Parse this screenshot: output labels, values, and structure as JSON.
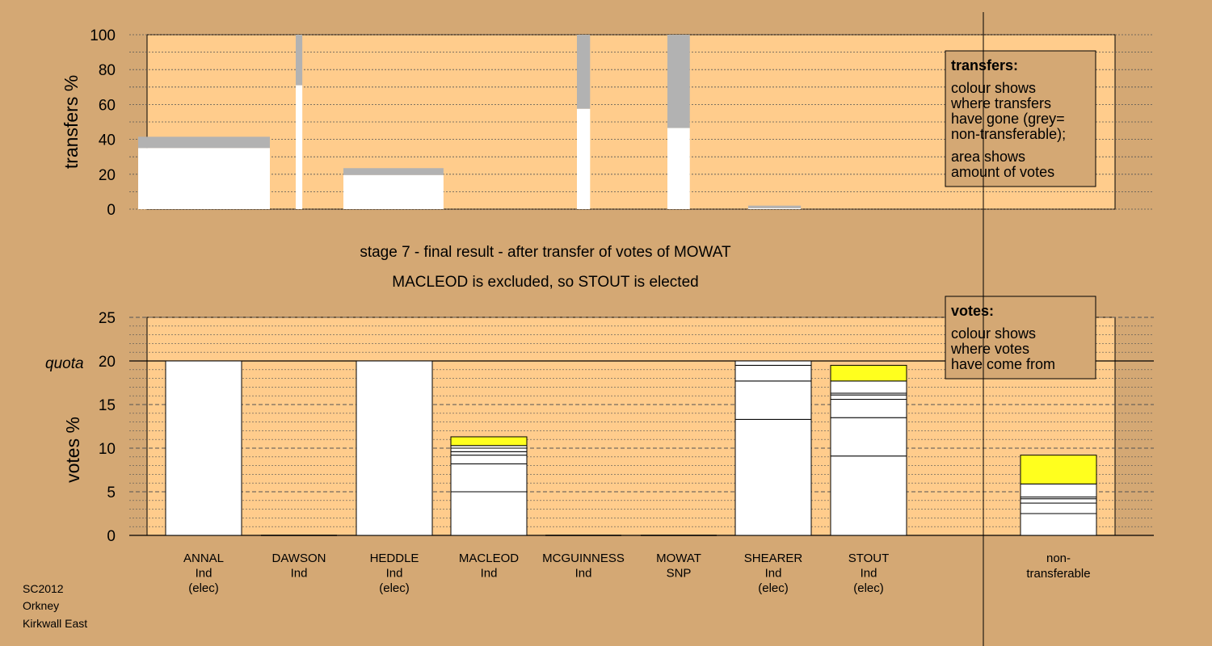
{
  "colors": {
    "background": "#d4a874",
    "plot_area": "#ffcc8c",
    "bar": "#ffffff",
    "non_transferable": "#b2b2b2",
    "highlight": "#ffff1e",
    "legend_box": "#d4a874"
  },
  "footer": {
    "line1": "SC2012",
    "line2": "Orkney",
    "line3": "Kirkwall East"
  },
  "stage_title": {
    "line1": "stage 7 - final result - after transfer of votes of MOWAT",
    "line2": "MACLEOD is excluded, so STOUT is elected"
  },
  "candidates": [
    {
      "name": "ANNAL",
      "party": "Ind",
      "status": "(elec)"
    },
    {
      "name": "DAWSON",
      "party": "Ind",
      "status": ""
    },
    {
      "name": "HEDDLE",
      "party": "Ind",
      "status": "(elec)"
    },
    {
      "name": "MACLEOD",
      "party": "Ind",
      "status": ""
    },
    {
      "name": "MCGUINNESS",
      "party": "Ind",
      "status": ""
    },
    {
      "name": "MOWAT",
      "party": "SNP",
      "status": ""
    },
    {
      "name": "SHEARER",
      "party": "Ind",
      "status": "(elec)"
    },
    {
      "name": "STOUT",
      "party": "Ind",
      "status": "(elec)"
    }
  ],
  "nontransferable_label": {
    "line1": "non-",
    "line2": "transferable"
  },
  "legend_transfers": {
    "heading": "transfers:",
    "lines": [
      "colour shows",
      "where transfers",
      "have gone (grey=",
      "non-transferable);",
      "area shows",
      "amount of votes"
    ]
  },
  "legend_votes": {
    "heading": "votes:",
    "lines": [
      "colour shows",
      "where votes",
      "have come from"
    ]
  },
  "chart_data": [
    {
      "type": "bar",
      "panel": "transfers",
      "ylabel": "transfers %",
      "ylim": [
        0,
        100
      ],
      "yticks": [
        0,
        20,
        40,
        60,
        80,
        100
      ],
      "bars": [
        {
          "stage": 2,
          "transferred": 35,
          "non_transferable": 6.5,
          "width_relative": 1.0
        },
        {
          "stage": 3,
          "transferred": 71,
          "non_transferable": 29,
          "width_relative": 0.05
        },
        {
          "stage": 4,
          "transferred": 19.5,
          "non_transferable": 4,
          "width_relative": 0.76
        },
        {
          "stage": 5,
          "transferred": 57.5,
          "non_transferable": 42.5,
          "width_relative": 0.1
        },
        {
          "stage": 6,
          "transferred": 46.5,
          "non_transferable": 53.5,
          "width_relative": 0.17
        },
        {
          "stage": 7,
          "transferred": 0.5,
          "non_transferable": 1.5,
          "width_relative": 0.4
        }
      ]
    },
    {
      "type": "bar",
      "panel": "votes",
      "ylabel": "votes %",
      "ylim": [
        0,
        25
      ],
      "yticks": [
        0,
        5,
        10,
        15,
        20,
        25
      ],
      "quota": 20,
      "quota_label": "quota",
      "categories": [
        "ANNAL",
        "DAWSON",
        "HEDDLE",
        "MACLEOD",
        "MCGUINNESS",
        "MOWAT",
        "SHEARER",
        "STOUT",
        "non-transferable"
      ],
      "segments": [
        [
          {
            "value": 20,
            "color": "white"
          }
        ],
        [],
        [
          {
            "value": 20,
            "color": "white"
          }
        ],
        [
          {
            "value": 5.0,
            "color": "white"
          },
          {
            "value": 3.2,
            "color": "white"
          },
          {
            "value": 1.0,
            "color": "white"
          },
          {
            "value": 0.4,
            "color": "white"
          },
          {
            "value": 0.4,
            "color": "white"
          },
          {
            "value": 0.3,
            "color": "white"
          },
          {
            "value": 1.0,
            "color": "yellow"
          }
        ],
        [],
        [],
        [
          {
            "value": 13.3,
            "color": "white"
          },
          {
            "value": 4.4,
            "color": "white"
          },
          {
            "value": 1.8,
            "color": "white"
          },
          {
            "value": 0.5,
            "color": "white"
          }
        ],
        [
          {
            "value": 9.1,
            "color": "white"
          },
          {
            "value": 4.4,
            "color": "white"
          },
          {
            "value": 2.1,
            "color": "white"
          },
          {
            "value": 0.5,
            "color": "white"
          },
          {
            "value": 0.2,
            "color": "white"
          },
          {
            "value": 1.4,
            "color": "white"
          },
          {
            "value": 1.8,
            "color": "yellow"
          }
        ],
        [
          {
            "value": 2.5,
            "color": "white"
          },
          {
            "value": 1.2,
            "color": "white"
          },
          {
            "value": 0.5,
            "color": "white"
          },
          {
            "value": 0.2,
            "color": "white"
          },
          {
            "value": 1.5,
            "color": "white"
          },
          {
            "value": 3.3,
            "color": "yellow"
          }
        ]
      ]
    }
  ]
}
